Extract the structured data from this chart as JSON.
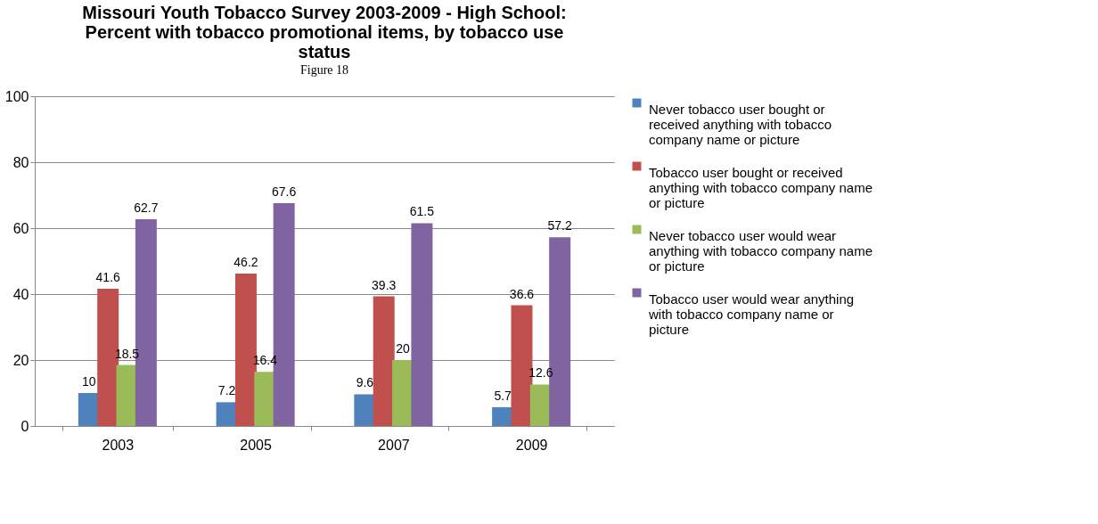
{
  "chart_data": {
    "type": "bar",
    "title": "Missouri Youth Tobacco Survey 2003-2009 - High School: Percent with tobacco promotional items, by tobacco use status",
    "annotations": [
      "Figure 18"
    ],
    "categories": [
      "2003",
      "2005",
      "2007",
      "2009"
    ],
    "series": [
      {
        "name": "Never tobacco user bought or received anything with tobacco company name or picture",
        "color": "#4f81bd",
        "values": [
          10,
          7.2,
          9.6,
          5.7
        ]
      },
      {
        "name": "Tobacco user bought or received anything with tobacco company name or picture",
        "color": "#c0504d",
        "values": [
          41.6,
          46.2,
          39.3,
          36.6
        ]
      },
      {
        "name": "Never tobacco user would wear anything with tobacco company name or picture",
        "color": "#9bbb59",
        "values": [
          18.5,
          16.4,
          20,
          12.6
        ]
      },
      {
        "name": "Tobacco user would wear anything with tobacco company name or picture",
        "color": "#8064a2",
        "values": [
          62.7,
          67.6,
          61.5,
          57.2
        ]
      }
    ],
    "ylim": [
      0,
      100
    ],
    "yticks": [
      0,
      20,
      40,
      60,
      80,
      100
    ],
    "grid": "y",
    "legend": "right",
    "data_labels": true
  }
}
